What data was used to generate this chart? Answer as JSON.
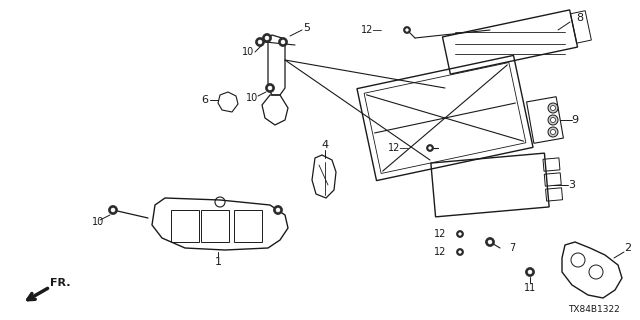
{
  "diagram_id": "TX84B1322",
  "background_color": "#ffffff",
  "line_color": "#1a1a1a",
  "text_color": "#1a1a1a",
  "figsize": [
    6.4,
    3.2
  ],
  "dpi": 100
}
